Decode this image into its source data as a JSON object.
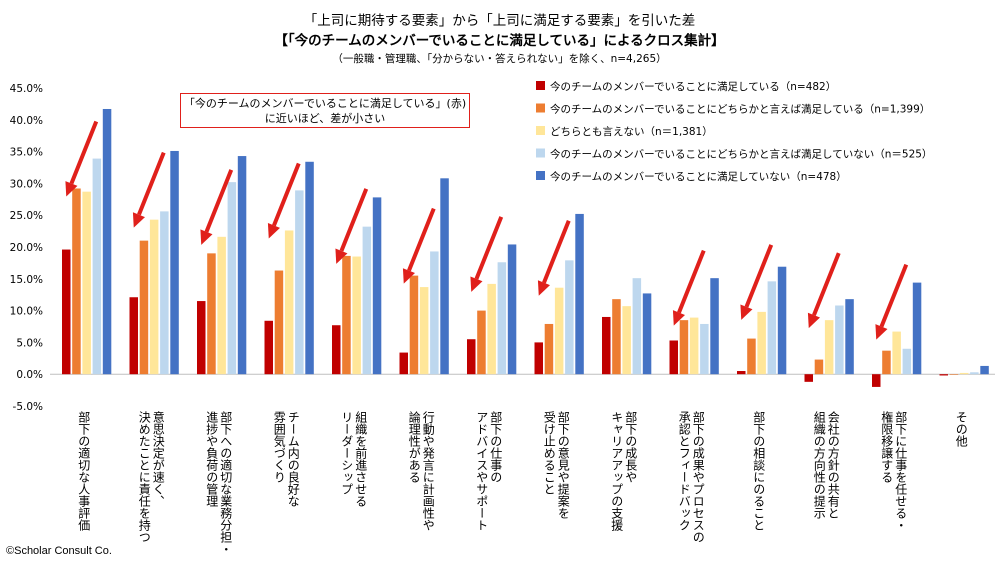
{
  "chart_data": {
    "type": "bar",
    "title": "「上司に期待する要素」から「上司に満足する要素」を引いた差",
    "subtitle": "【「今のチームのメンバーでいることに満足している」によるクロス集計】",
    "note": "（一般職・管理職、「分からない・答えられない」を除く、n=4,265）",
    "annotation": [
      "「今のチームのメンバーでいることに満足している」(赤)",
      "に近いほど、差が小さい"
    ],
    "copyright": "©Scholar Consult Co.",
    "ylim": [
      -5,
      45
    ],
    "yticks": [
      "-5.0%",
      "0.0%",
      "5.0%",
      "10.0%",
      "15.0%",
      "20.0%",
      "25.0%",
      "30.0%",
      "35.0%",
      "40.0%",
      "45.0%"
    ],
    "legend_position": "top-right",
    "categories": [
      [
        "部下の適切な人事評価"
      ],
      [
        "意思決定が速く、",
        "決めたことに責任を持つ"
      ],
      [
        "部下への適切な業務分担・",
        "進捗や負荷の管理"
      ],
      [
        "チーム内の良好な",
        "雰囲気づくり"
      ],
      [
        "組織を前進させる",
        "リーダーシップ"
      ],
      [
        "行動や発言に計画性や",
        "論理性がある"
      ],
      [
        "部下の仕事の",
        "アドバイスやサポート"
      ],
      [
        "部下の意見や提案を",
        "受け止めること"
      ],
      [
        "部下の成長や",
        "キャリアアップの支援"
      ],
      [
        "部下の成果やプロセスの",
        "承認とフィードバック"
      ],
      [
        "部下の相談にのること"
      ],
      [
        "会社の方針の共有と",
        "組織の方向性の提示"
      ],
      [
        "部下に仕事を任せる・",
        "権限移譲する"
      ],
      [
        "その他"
      ]
    ],
    "series": [
      {
        "name": "今のチームのメンバーでいることに満足している（n=482）",
        "color": "#c00000",
        "values": [
          19.6,
          12.1,
          11.5,
          8.4,
          7.7,
          3.4,
          5.5,
          5.0,
          9.0,
          5.3,
          0.5,
          -1.2,
          -2.0,
          -0.2
        ]
      },
      {
        "name": "今のチームのメンバーでいることにどちらかと言えば満足している（n=1,399）",
        "color": "#ed7d31",
        "values": [
          29.2,
          21.0,
          19.0,
          16.3,
          18.6,
          15.5,
          10.0,
          7.9,
          11.8,
          8.5,
          5.6,
          2.3,
          3.7,
          0.0
        ]
      },
      {
        "name": "どちらとも言えない（n＝1,381）",
        "color": "#ffe699",
        "values": [
          28.7,
          24.3,
          21.6,
          22.6,
          18.5,
          13.7,
          14.2,
          13.6,
          10.7,
          8.9,
          9.8,
          8.5,
          6.7,
          0.2
        ]
      },
      {
        "name": "今のチームのメンバーでいることにどちらかと言えば満足していない（n＝525）",
        "color": "#bdd7ee",
        "values": [
          33.9,
          25.6,
          30.2,
          28.9,
          23.2,
          19.3,
          17.6,
          17.9,
          15.1,
          7.9,
          14.6,
          10.8,
          4.0,
          0.3
        ]
      },
      {
        "name": "今のチームのメンバーでいることに満足していない（n=478）",
        "color": "#4472c4",
        "values": [
          41.7,
          35.1,
          34.3,
          33.4,
          27.8,
          30.8,
          20.4,
          25.2,
          12.7,
          15.1,
          16.9,
          11.8,
          14.4,
          1.3
        ]
      }
    ]
  }
}
